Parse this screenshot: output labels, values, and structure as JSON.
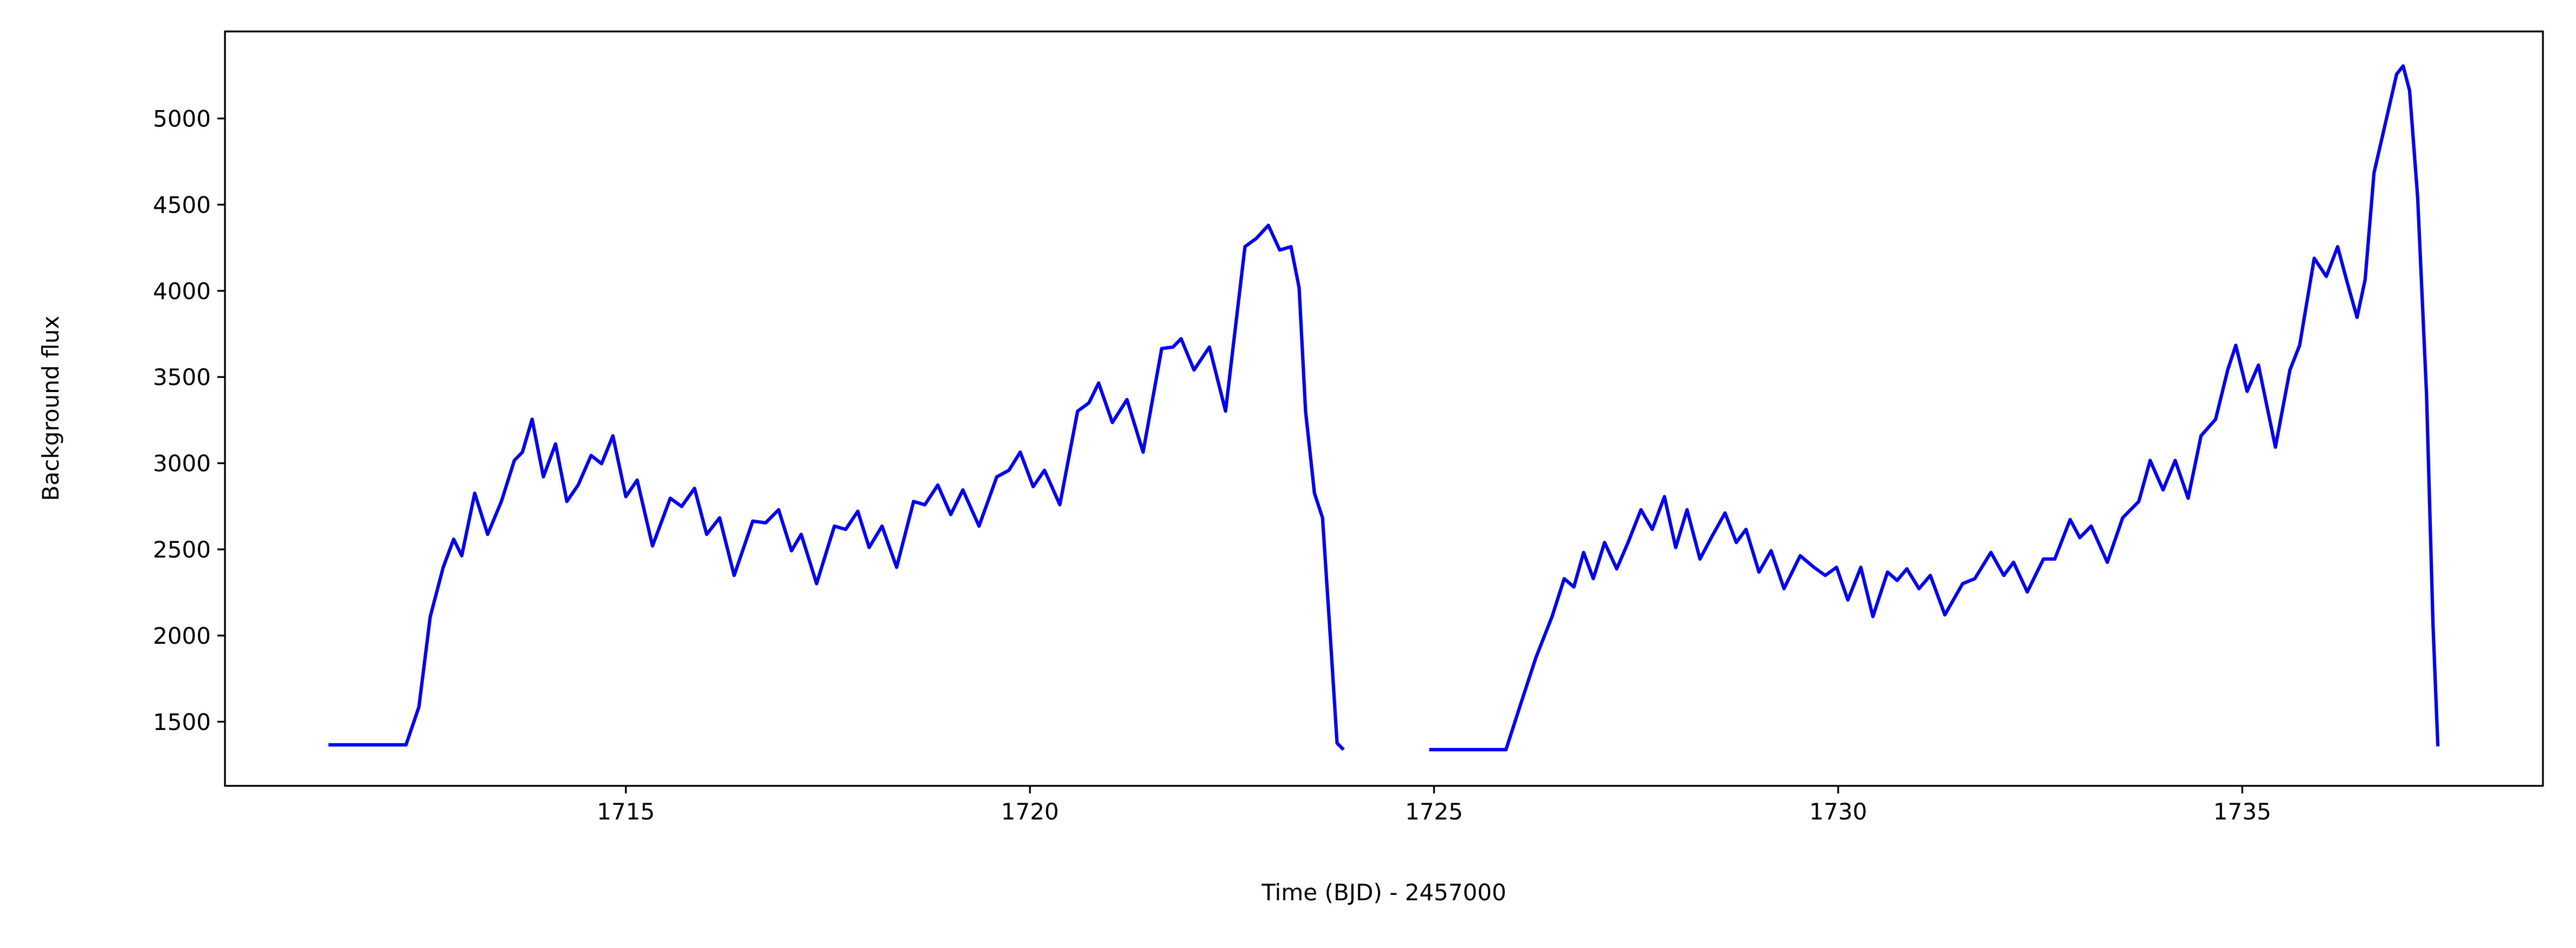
{
  "chart_data": {
    "type": "line",
    "x_label": "Time (BJD) - 2457000",
    "y_label": "Background flux",
    "xlim": [
      1710.04,
      1738.72
    ],
    "ylim": [
      1128,
      5505
    ],
    "xticks": [
      1715,
      1720,
      1725,
      1730,
      1735
    ],
    "yticks": [
      1500,
      2000,
      2500,
      3000,
      3500,
      4000,
      4500,
      5000
    ],
    "series": [
      {
        "color": "#0000ff",
        "x": [
          1711.32,
          1712.28,
          1712.44,
          1712.58,
          1712.74,
          1712.87,
          1712.97,
          1713.13,
          1713.29,
          1713.46,
          1713.62,
          1713.72,
          1713.84,
          1713.98,
          1714.13,
          1714.27,
          1714.41,
          1714.57,
          1714.7,
          1714.84,
          1715.0,
          1715.14,
          1715.33,
          1715.55,
          1715.69,
          1715.85,
          1716.0,
          1716.16,
          1716.34,
          1716.57,
          1716.73,
          1716.89,
          1717.05,
          1717.17,
          1717.36,
          1717.58,
          1717.72,
          1717.87,
          1718.01,
          1718.17,
          1718.35,
          1718.56,
          1718.7,
          1718.86,
          1719.02,
          1719.17,
          1719.37,
          1719.59,
          1719.74,
          1719.88,
          1720.04,
          1720.18,
          1720.37,
          1720.59,
          1720.73,
          1720.85,
          1721.02,
          1721.2,
          1721.4,
          1721.63,
          1721.77,
          1721.87,
          1722.03,
          1722.22,
          1722.42,
          1722.66,
          1722.8,
          1722.95,
          1723.09,
          1723.23,
          1723.33,
          1723.41,
          1723.52,
          1723.62,
          1723.72,
          1723.8,
          1723.88,
          1724.4,
          1724.94,
          1725.89,
          1726.06,
          1726.26,
          1726.46,
          1726.61,
          1726.73,
          1726.85,
          1726.97,
          1727.11,
          1727.26,
          1727.4,
          1727.56,
          1727.7,
          1727.85,
          1727.99,
          1728.13,
          1728.29,
          1728.43,
          1728.6,
          1728.74,
          1728.86,
          1729.02,
          1729.17,
          1729.33,
          1729.53,
          1729.7,
          1729.84,
          1729.98,
          1730.12,
          1730.28,
          1730.43,
          1730.61,
          1730.73,
          1730.85,
          1731.0,
          1731.14,
          1731.32,
          1731.54,
          1731.69,
          1731.89,
          1732.05,
          1732.17,
          1732.34,
          1732.54,
          1732.68,
          1732.87,
          1732.99,
          1733.13,
          1733.33,
          1733.52,
          1733.72,
          1733.86,
          1734.02,
          1734.17,
          1734.33,
          1734.49,
          1734.67,
          1734.82,
          1734.92,
          1735.06,
          1735.2,
          1735.41,
          1735.59,
          1735.71,
          1735.89,
          1736.04,
          1736.18,
          1736.3,
          1736.42,
          1736.52,
          1736.63,
          1736.77,
          1736.91,
          1736.99,
          1737.07,
          1737.17,
          1737.28,
          1737.36,
          1737.42
        ],
        "values": [
          1366,
          1366,
          1586,
          2110,
          2396,
          2559,
          2463,
          2826,
          2587,
          2778,
          3016,
          3064,
          3255,
          2921,
          3112,
          2778,
          2873,
          3045,
          2997,
          3159,
          2806,
          2902,
          2520,
          2797,
          2749,
          2854,
          2587,
          2683,
          2349,
          2664,
          2654,
          2730,
          2492,
          2587,
          2301,
          2635,
          2616,
          2721,
          2511,
          2635,
          2396,
          2778,
          2759,
          2873,
          2702,
          2845,
          2635,
          2921,
          2959,
          3064,
          2864,
          2959,
          2759,
          3302,
          3350,
          3465,
          3236,
          3369,
          3064,
          3665,
          3674,
          3722,
          3541,
          3674,
          3302,
          4256,
          4304,
          4380,
          4237,
          4256,
          4018,
          3302,
          2826,
          2683,
          1967,
          1376,
          1338,
          null,
          1338,
          1338,
          1586,
          1872,
          2110,
          2330,
          2282,
          2482,
          2330,
          2540,
          2387,
          2540,
          2730,
          2616,
          2806,
          2511,
          2730,
          2444,
          2568,
          2711,
          2540,
          2616,
          2368,
          2492,
          2272,
          2463,
          2396,
          2349,
          2396,
          2206,
          2396,
          2110,
          2368,
          2320,
          2387,
          2272,
          2349,
          2120,
          2301,
          2330,
          2482,
          2349,
          2425,
          2253,
          2444,
          2444,
          2673,
          2568,
          2635,
          2425,
          2683,
          2778,
          3016,
          2845,
          3016,
          2797,
          3159,
          3255,
          3541,
          3684,
          3417,
          3569,
          3093,
          3541,
          3684,
          4189,
          4084,
          4256,
          4046,
          3846,
          4065,
          4685,
          4971,
          5257,
          5305,
          5162,
          4542,
          3398,
          2063,
          1357
        ]
      }
    ]
  }
}
